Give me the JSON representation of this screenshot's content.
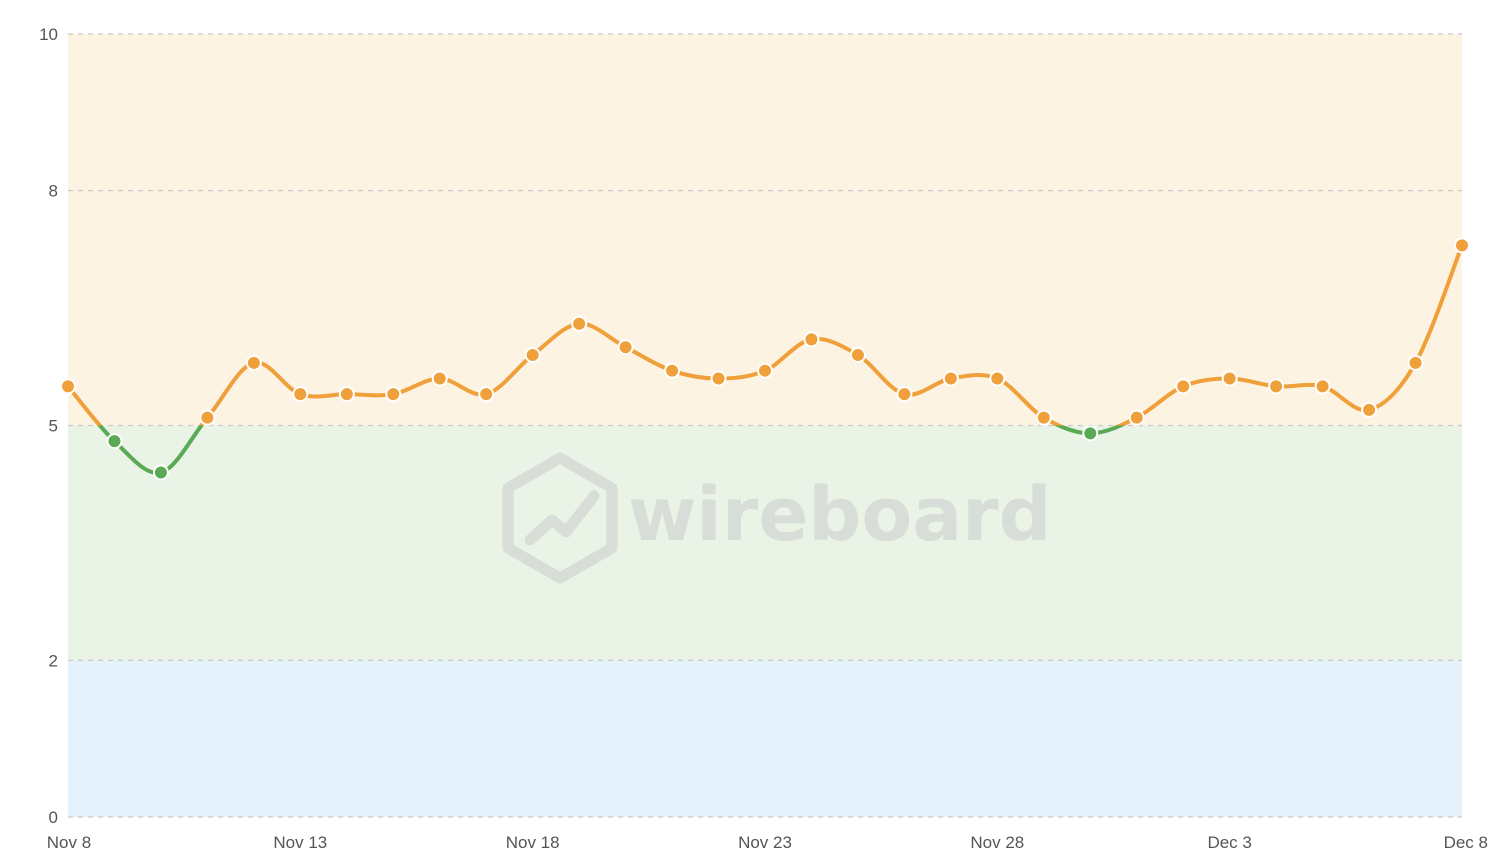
{
  "chart_data": {
    "type": "line",
    "x": [
      "Nov 8",
      "Nov 9",
      "Nov 10",
      "Nov 11",
      "Nov 12",
      "Nov 13",
      "Nov 14",
      "Nov 15",
      "Nov 16",
      "Nov 17",
      "Nov 18",
      "Nov 19",
      "Nov 20",
      "Nov 21",
      "Nov 22",
      "Nov 23",
      "Nov 24",
      "Nov 25",
      "Nov 26",
      "Nov 27",
      "Nov 28",
      "Nov 29",
      "Nov 30",
      "Dec 1",
      "Dec 2",
      "Dec 3",
      "Dec 4",
      "Dec 5",
      "Dec 6",
      "Dec 7",
      "Dec 8"
    ],
    "values": [
      5.5,
      4.8,
      4.4,
      5.1,
      5.8,
      5.4,
      5.4,
      5.4,
      5.6,
      5.4,
      5.9,
      6.3,
      6.0,
      5.7,
      5.6,
      5.7,
      6.1,
      5.9,
      5.4,
      5.6,
      5.6,
      5.1,
      4.9,
      5.1,
      5.5,
      5.6,
      5.5,
      5.5,
      5.2,
      5.8,
      7.3
    ],
    "x_tick_labels": [
      "Nov 8",
      "Nov 13",
      "Nov 18",
      "Nov 23",
      "Nov 28",
      "Dec 3",
      "Dec 8"
    ],
    "y_ticks": [
      0,
      2,
      5,
      8,
      10
    ],
    "ylim": [
      0,
      10
    ],
    "threshold": 5,
    "bands": [
      {
        "from": 0,
        "to": 2,
        "color": "#e6f2fb"
      },
      {
        "from": 2,
        "to": 5,
        "color": "#e9f4e7"
      },
      {
        "from": 5,
        "to": 10,
        "color": "#fdf3e2"
      }
    ],
    "colors": {
      "above": "#f0a03a",
      "below": "#5aaa55",
      "grid": "#c8c8c8"
    },
    "grid": true,
    "watermark": "wireboard"
  }
}
